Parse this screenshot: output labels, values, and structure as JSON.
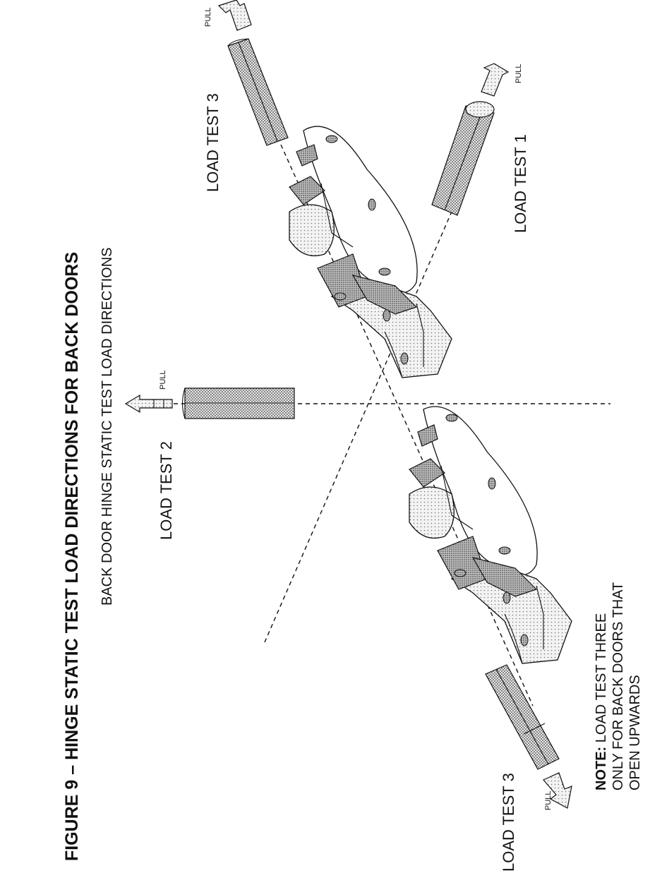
{
  "figure": {
    "title": "FIGURE 9 – HINGE STATIC TEST LOAD DIRECTIONS FOR BACK DOORS",
    "subtitle": "BACK DOOR HINGE STATIC TEST LOAD DIRECTIONS"
  },
  "labels": {
    "load_test_1": "LOAD TEST 1",
    "load_test_2": "LOAD TEST 2",
    "load_test_3_upper": "LOAD TEST 3",
    "load_test_3_lower": "LOAD TEST 3",
    "pull": "PULL"
  },
  "note": {
    "bold": "NOTE:",
    "line1": "LOAD TEST THREE",
    "line2": "ONLY FOR BACK DOORS THAT",
    "line3": "OPEN UPWARDS"
  }
}
